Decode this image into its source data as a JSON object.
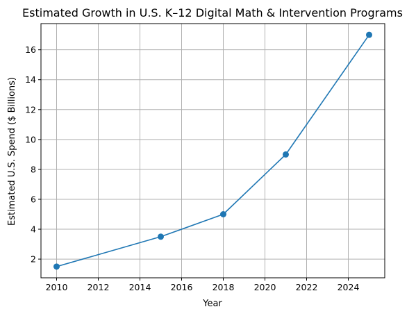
{
  "chart_data": {
    "type": "line",
    "title": "Estimated Growth in U.S. K–12 Digital Math & Intervention Programs",
    "xlabel": "Year",
    "ylabel": "Estimated U.S. Spend ($ Billions)",
    "xlim": [
      2009.25,
      2025.75
    ],
    "ylim": [
      0.75,
      17.75
    ],
    "xticks": [
      2010,
      2012,
      2014,
      2016,
      2018,
      2020,
      2022,
      2024
    ],
    "yticks": [
      2,
      4,
      6,
      8,
      10,
      12,
      14,
      16
    ],
    "grid": true,
    "series": [
      {
        "color": "#1f77b4",
        "marker": "circle",
        "x": [
          2010,
          2015,
          2018,
          2021,
          2025
        ],
        "y": [
          1.5,
          3.5,
          5.0,
          9.0,
          17.0
        ]
      }
    ]
  }
}
